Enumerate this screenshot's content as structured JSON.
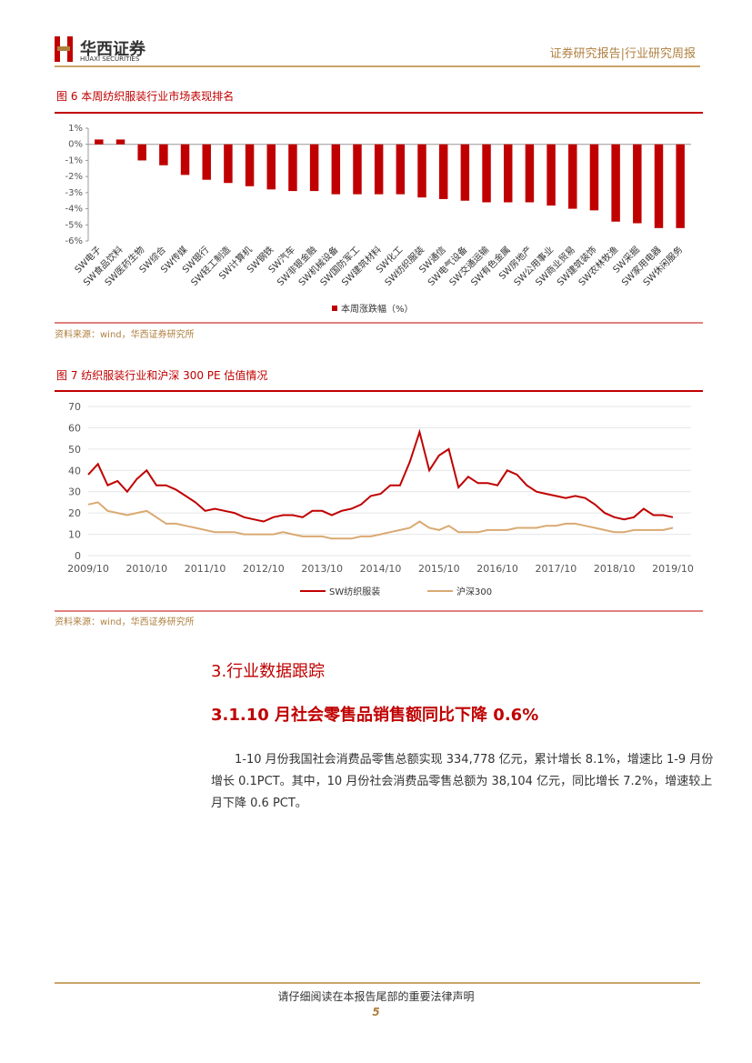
{
  "header": {
    "logo": "华西证券",
    "logo_en": "HUAXI SECURITIES",
    "report_type": "证券研究报告|行业研究周报"
  },
  "figure6": {
    "caption": "图 6   本周纺织服装行业市场表现排名",
    "source": "资料来源：wind，华西证券研究所",
    "chart_data": {
      "type": "bar",
      "categories": [
        "SW电子",
        "SW食品饮料",
        "SW医药生物",
        "SW综合",
        "SW传媒",
        "SW银行",
        "SW轻工制造",
        "SW计算机",
        "SW钢铁",
        "SW汽车",
        "SW非银金融",
        "SW机械设备",
        "SW国防军工",
        "SW建筑材料",
        "SW化工",
        "SW纺织服装",
        "SW通信",
        "SW电气设备",
        "SW交通运输",
        "SW有色金属",
        "SW房地产",
        "SW公用事业",
        "SW商业贸易",
        "SW建筑装饰",
        "SW农林牧渔",
        "SW采掘",
        "SW家用电器",
        "SW休闲服务"
      ],
      "series": [
        {
          "name": "本周涨跌幅（%）",
          "color": "#c00000",
          "values": [
            0.3,
            0.3,
            -1.0,
            -1.3,
            -1.9,
            -2.2,
            -2.4,
            -2.6,
            -2.8,
            -2.9,
            -2.9,
            -3.1,
            -3.1,
            -3.1,
            -3.1,
            -3.3,
            -3.4,
            -3.5,
            -3.6,
            -3.6,
            -3.6,
            -3.8,
            -4.0,
            -4.1,
            -4.8,
            -4.9,
            -5.2,
            -5.2
          ]
        }
      ],
      "ylim": [
        -6,
        1
      ],
      "yticks": [
        {
          "value": 1,
          "label": "1%"
        },
        {
          "value": 0,
          "label": "0%"
        },
        {
          "value": -1,
          "label": "-1%"
        },
        {
          "value": -2,
          "label": "-2%"
        },
        {
          "value": -3,
          "label": "-3%"
        },
        {
          "value": -4,
          "label": "-4%"
        },
        {
          "value": -5,
          "label": "-5%"
        },
        {
          "value": -6,
          "label": "-6%"
        }
      ],
      "legend": "bottom"
    }
  },
  "figure7": {
    "caption": "图 7   纺织服装行业和沪深 300 PE 估值情况",
    "source": "资料来源：wind，华西证券研究所",
    "chart_data": {
      "type": "line",
      "x": [
        "2009/10",
        "2009/12",
        "2010/02",
        "2010/04",
        "2010/06",
        "2010/08",
        "2010/10",
        "2010/12",
        "2011/02",
        "2011/04",
        "2011/06",
        "2011/08",
        "2011/10",
        "2011/12",
        "2012/02",
        "2012/04",
        "2012/06",
        "2012/08",
        "2012/10",
        "2012/12",
        "2013/02",
        "2013/04",
        "2013/06",
        "2013/08",
        "2013/10",
        "2013/12",
        "2014/02",
        "2014/04",
        "2014/06",
        "2014/08",
        "2014/10",
        "2014/12",
        "2015/02",
        "2015/04",
        "2015/06",
        "2015/08",
        "2015/10",
        "2015/12",
        "2016/02",
        "2016/04",
        "2016/06",
        "2016/08",
        "2016/10",
        "2016/12",
        "2017/02",
        "2017/04",
        "2017/06",
        "2017/08",
        "2017/10",
        "2017/12",
        "2018/02",
        "2018/04",
        "2018/06",
        "2018/08",
        "2018/10",
        "2018/12",
        "2019/02",
        "2019/04",
        "2019/06",
        "2019/08",
        "2019/10"
      ],
      "xticks": [
        "2009/10",
        "2010/10",
        "2011/10",
        "2012/10",
        "2013/10",
        "2014/10",
        "2015/10",
        "2016/10",
        "2017/10",
        "2018/10",
        "2019/10"
      ],
      "series": [
        {
          "name": "SW纺织服装",
          "color": "#c00000",
          "values": [
            38,
            43,
            33,
            35,
            30,
            36,
            40,
            33,
            33,
            31,
            28,
            25,
            21,
            22,
            21,
            20,
            18,
            17,
            16,
            18,
            19,
            19,
            18,
            21,
            21,
            19,
            21,
            22,
            24,
            28,
            29,
            33,
            33,
            44,
            58,
            40,
            47,
            50,
            32,
            37,
            34,
            34,
            33,
            40,
            38,
            33,
            30,
            29,
            28,
            27,
            28,
            27,
            24,
            20,
            18,
            17,
            18,
            22,
            19,
            19,
            18
          ]
        },
        {
          "name": "沪深300",
          "color": "#d9aa72",
          "values": [
            24,
            25,
            21,
            20,
            19,
            20,
            21,
            18,
            15,
            15,
            14,
            13,
            12,
            11,
            11,
            11,
            10,
            10,
            10,
            10,
            11,
            10,
            9,
            9,
            9,
            8,
            8,
            8,
            9,
            9,
            10,
            11,
            12,
            13,
            16,
            13,
            12,
            14,
            11,
            11,
            11,
            12,
            12,
            12,
            13,
            13,
            13,
            14,
            14,
            15,
            15,
            14,
            13,
            12,
            11,
            11,
            12,
            12,
            12,
            12,
            13
          ]
        }
      ],
      "ylim": [
        0,
        70
      ],
      "yticks": [
        0,
        10,
        20,
        30,
        40,
        50,
        60,
        70
      ],
      "legend": "bottom"
    }
  },
  "section": {
    "title": "3.行业数据跟踪",
    "subtitle": "3.1.10 月社会零售品销售额同比下降 0.6%",
    "paragraph": "1-10 月份我国社会消费品零售总额实现 334,778 亿元，累计增长 8.1%，增速比 1-9 月份增长 0.1PCT。其中，10 月份社会消费品零售总额为 38,104 亿元，同比增长 7.2%，增速较上月下降 0.6 PCT。"
  },
  "footer": {
    "notice": "请仔细阅读在本报告尾部的重要法律声明",
    "page": "5"
  }
}
